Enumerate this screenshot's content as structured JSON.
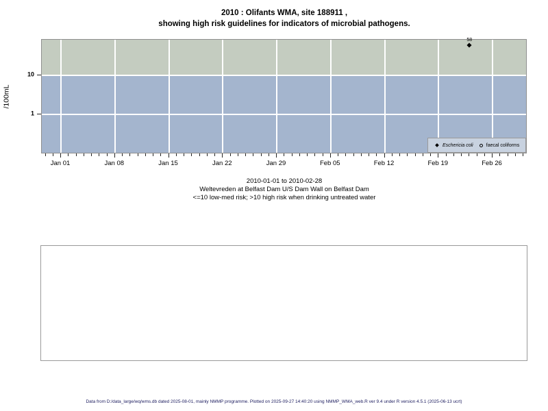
{
  "title": {
    "line1": "2010 : Olifants WMA, site 188911 ,",
    "line2": "showing high risk guidelines for indicators of microbial pathogens."
  },
  "subtitle": {
    "line1": "2010-01-01 to 2010-02-28",
    "line2": "Weltevreden at Belfast Dam U/S Dam Wall on Belfast Dam",
    "line3": "<=10 low-med risk; >10 high risk when drinking untreated water"
  },
  "footer": {
    "text": "Data from D:/data_large/wq/wms.db dated 2025-08-01, mainly NMMP programme. Plotted on 2025-09-27 14:40:20 using NMMP_WMA_web.R ver 9.4 under R version 4.5.1 (2025-06-13 ucrt)"
  },
  "legend": {
    "items": [
      {
        "label": "Eschericia coli",
        "symbol": "filled-diamond"
      },
      {
        "label": "faecal coliforms",
        "symbol": "open-circle"
      }
    ]
  },
  "chart_data": {
    "type": "scatter",
    "title": "2010 : Olifants WMA, site 188911 , showing high risk guidelines for indicators of microbial pathogens.",
    "xlabel": "",
    "ylabel": "/100mL",
    "y_scale": "log10",
    "y_ticks": [
      10,
      1
    ],
    "y_axis_range_approx": [
      0.1,
      80
    ],
    "x_range": [
      "2010-01-01",
      "2010-02-28"
    ],
    "x_tick_labels": [
      "Jan 01",
      "Jan 08",
      "Jan 15",
      "Jan 22",
      "Jan 29",
      "Feb 05",
      "Feb 12",
      "Feb 19",
      "Feb 26"
    ],
    "x_minor_day_range": [
      -2,
      60
    ],
    "grid": true,
    "legend_position": "bottom-right-inside",
    "series": [
      {
        "name": "Eschericia coli",
        "symbol": "filled-diamond",
        "points": [
          {
            "day_offset": 53,
            "approx_date": "2010-02-23",
            "value": 58,
            "label": "58"
          }
        ]
      },
      {
        "name": "faecal coliforms",
        "symbol": "open-circle",
        "points": []
      }
    ],
    "risk_bands": [
      {
        "range": "> 10",
        "meaning": "high risk",
        "color": "#c4ccc0"
      },
      {
        "range": "<= 10",
        "meaning": "low-med risk",
        "color": "#a4b5ce"
      }
    ]
  },
  "colors": {
    "band_high": "#c4ccc0",
    "band_low": "#a4b5ce",
    "legend_bg": "#c8d2e0",
    "gridline": "#ffffff",
    "panel_border": "#8f8f8f",
    "box_border": "#999999",
    "footer_text": "#1b1b5e",
    "point": "#000000"
  }
}
